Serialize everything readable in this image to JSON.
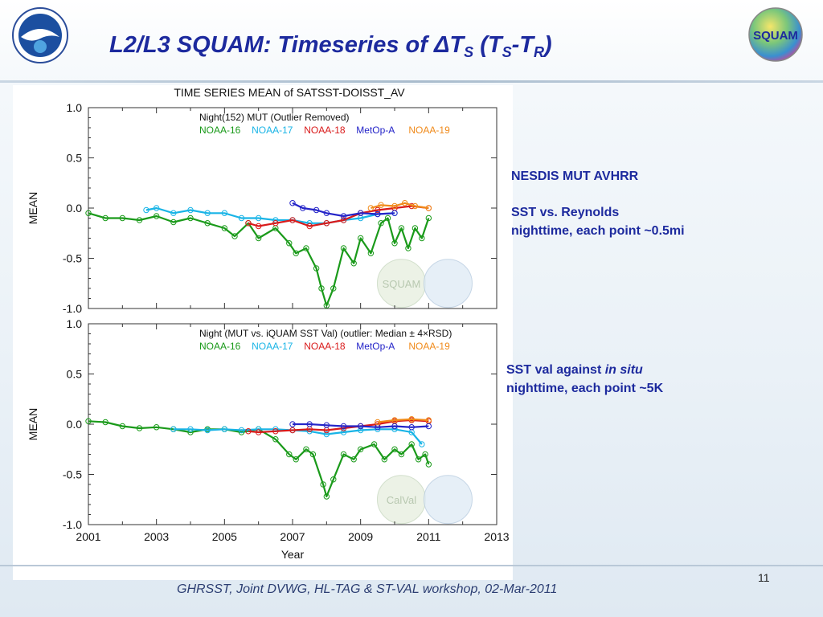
{
  "slide": {
    "title_main": "L2/L3 SQUAM:   Timeseries of ΔT",
    "title_sub1": "S",
    "title_paren_open": " (T",
    "title_sub2": "S",
    "title_dash": "-T",
    "title_sub3": "R",
    "title_paren_close": ")",
    "logo_right_text": "SQUAM",
    "footer": "GHRSST, Joint DVWG, HL-TAG & ST-VAL workshop, 02-Mar-2011",
    "page_number": "11"
  },
  "annotations": {
    "top_heading": "NESDIS MUT AVHRR",
    "top_line1": "SST vs. Reynolds",
    "top_line2": "nighttime, each point ~0.5mi",
    "bottom_line1_a": "SST val against ",
    "bottom_line1_b": "in situ",
    "bottom_line2": "nighttime, each point ~5K"
  },
  "colors": {
    "title": "#1d2a9e",
    "noaa16": "#1a9a1a",
    "noaa17": "#19b4e6",
    "noaa18": "#d91a1a",
    "metop_a": "#2424c8",
    "noaa19": "#f08a1a"
  },
  "chart_data": [
    {
      "type": "line",
      "title": "TIME SERIES MEAN  of  SATSST-DOISST_AV",
      "subtitle": "Night(152) MUT (Outlier Removed)",
      "ylabel": "MEAN",
      "ylim": [
        -1.0,
        1.0
      ],
      "yticks": [
        "1.0",
        "0.5",
        "0.0",
        "-0.5",
        "-1.0"
      ],
      "xlim": [
        2001,
        2013
      ],
      "grid": false,
      "legend_position": "top",
      "watermark": "SQUAM",
      "series": [
        {
          "name": "NOAA-16",
          "color": "#1a9a1a",
          "x": [
            2001.0,
            2001.5,
            2002.0,
            2002.5,
            2003.0,
            2003.5,
            2004.0,
            2004.5,
            2005.0,
            2005.3,
            2005.7,
            2006.0,
            2006.5,
            2006.9,
            2007.1,
            2007.4,
            2007.7,
            2007.85,
            2008.0,
            2008.2,
            2008.5,
            2008.8,
            2009.0,
            2009.3,
            2009.6,
            2009.8,
            2010.0,
            2010.2,
            2010.4,
            2010.6,
            2010.8,
            2011.0
          ],
          "y": [
            -0.05,
            -0.1,
            -0.1,
            -0.12,
            -0.08,
            -0.14,
            -0.1,
            -0.15,
            -0.2,
            -0.28,
            -0.15,
            -0.3,
            -0.2,
            -0.35,
            -0.45,
            -0.4,
            -0.6,
            -0.8,
            -0.97,
            -0.8,
            -0.4,
            -0.55,
            -0.3,
            -0.45,
            -0.15,
            -0.1,
            -0.35,
            -0.2,
            -0.4,
            -0.2,
            -0.3,
            -0.1
          ]
        },
        {
          "name": "NOAA-17",
          "color": "#19b4e6",
          "x": [
            2002.7,
            2003.0,
            2003.5,
            2004.0,
            2004.5,
            2005.0,
            2005.5,
            2006.0,
            2006.5,
            2007.0,
            2007.5,
            2008.0,
            2008.5,
            2009.0,
            2009.5,
            2010.0
          ],
          "y": [
            -0.02,
            0.0,
            -0.05,
            -0.02,
            -0.05,
            -0.05,
            -0.1,
            -0.1,
            -0.12,
            -0.12,
            -0.15,
            -0.15,
            -0.12,
            -0.1,
            -0.06,
            -0.05
          ]
        },
        {
          "name": "NOAA-18",
          "color": "#d91a1a",
          "x": [
            2005.7,
            2006.0,
            2006.5,
            2007.0,
            2007.5,
            2008.0,
            2008.5,
            2009.0,
            2009.5,
            2010.0,
            2010.5,
            2011.0
          ],
          "y": [
            -0.15,
            -0.18,
            -0.15,
            -0.12,
            -0.18,
            -0.15,
            -0.12,
            -0.05,
            -0.02,
            0.0,
            0.02,
            0.0
          ]
        },
        {
          "name": "MetOp-A",
          "color": "#2424c8",
          "x": [
            2007.0,
            2007.3,
            2007.7,
            2008.0,
            2008.5,
            2009.0,
            2009.5,
            2010.0
          ],
          "y": [
            0.05,
            0.0,
            -0.02,
            -0.05,
            -0.08,
            -0.05,
            -0.06,
            -0.05
          ]
        },
        {
          "name": "NOAA-19",
          "color": "#f08a1a",
          "x": [
            2009.3,
            2009.6,
            2010.0,
            2010.3,
            2010.6,
            2011.0
          ],
          "y": [
            0.0,
            0.03,
            0.02,
            0.05,
            0.02,
            0.0
          ]
        }
      ]
    },
    {
      "type": "line",
      "title": "",
      "subtitle": "Night (MUT vs. iQUAM SST Val) (outlier: Median ± 4×RSD)",
      "xlabel": "Year",
      "ylabel": "MEAN",
      "ylim": [
        -1.0,
        1.0
      ],
      "yticks": [
        "1.0",
        "0.5",
        "0.0",
        "-0.5",
        "-1.0"
      ],
      "xlim": [
        2001,
        2013
      ],
      "xticks": [
        "2001",
        "2003",
        "2005",
        "2007",
        "2009",
        "2011",
        "2013"
      ],
      "grid": false,
      "legend_position": "top",
      "watermark": "CalVal",
      "series": [
        {
          "name": "NOAA-16",
          "color": "#1a9a1a",
          "x": [
            2001.0,
            2001.5,
            2002.0,
            2002.5,
            2003.0,
            2003.5,
            2004.0,
            2004.5,
            2005.0,
            2005.5,
            2006.0,
            2006.5,
            2006.9,
            2007.1,
            2007.4,
            2007.6,
            2007.9,
            2008.0,
            2008.2,
            2008.5,
            2008.8,
            2009.0,
            2009.4,
            2009.7,
            2010.0,
            2010.2,
            2010.5,
            2010.7,
            2010.9,
            2011.0
          ],
          "y": [
            0.03,
            0.02,
            -0.02,
            -0.04,
            -0.03,
            -0.05,
            -0.08,
            -0.05,
            -0.05,
            -0.08,
            -0.05,
            -0.15,
            -0.3,
            -0.35,
            -0.25,
            -0.3,
            -0.6,
            -0.72,
            -0.55,
            -0.3,
            -0.35,
            -0.25,
            -0.2,
            -0.35,
            -0.25,
            -0.3,
            -0.2,
            -0.35,
            -0.3,
            -0.4
          ]
        },
        {
          "name": "NOAA-17",
          "color": "#19b4e6",
          "x": [
            2003.5,
            2004.0,
            2004.5,
            2005.0,
            2005.5,
            2006.0,
            2006.5,
            2007.0,
            2007.5,
            2008.0,
            2008.5,
            2009.0,
            2009.5,
            2010.0,
            2010.5,
            2010.8
          ],
          "y": [
            -0.05,
            -0.05,
            -0.06,
            -0.05,
            -0.06,
            -0.05,
            -0.05,
            -0.06,
            -0.07,
            -0.1,
            -0.08,
            -0.06,
            -0.05,
            -0.05,
            -0.08,
            -0.2
          ]
        },
        {
          "name": "NOAA-18",
          "color": "#d91a1a",
          "x": [
            2005.7,
            2006.0,
            2006.5,
            2007.0,
            2007.5,
            2008.0,
            2008.5,
            2009.0,
            2009.5,
            2010.0,
            2010.5,
            2011.0
          ],
          "y": [
            -0.07,
            -0.08,
            -0.07,
            -0.06,
            -0.05,
            -0.06,
            -0.04,
            -0.02,
            0.0,
            0.03,
            0.04,
            0.03
          ]
        },
        {
          "name": "MetOp-A",
          "color": "#2424c8",
          "x": [
            2007.0,
            2007.5,
            2008.0,
            2008.5,
            2009.0,
            2009.5,
            2010.0,
            2010.5,
            2011.0
          ],
          "y": [
            0.0,
            0.0,
            -0.01,
            -0.02,
            -0.02,
            -0.03,
            -0.02,
            -0.03,
            -0.02
          ]
        },
        {
          "name": "NOAA-19",
          "color": "#f08a1a",
          "x": [
            2009.5,
            2010.0,
            2010.5,
            2011.0
          ],
          "y": [
            0.02,
            0.04,
            0.05,
            0.04
          ]
        }
      ]
    }
  ]
}
